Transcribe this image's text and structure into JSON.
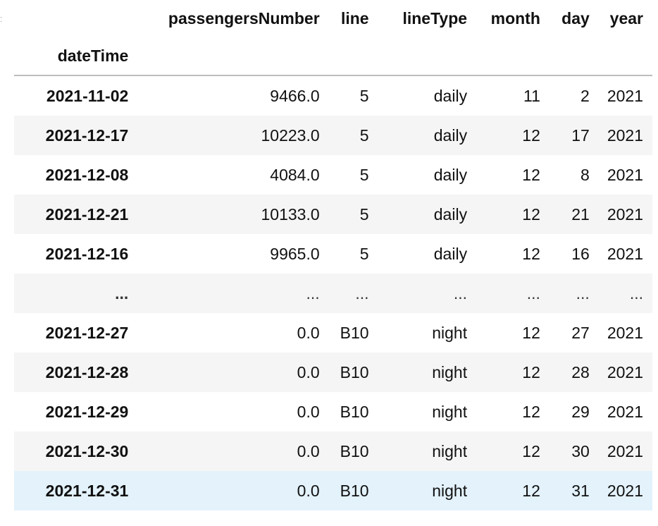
{
  "table": {
    "columns": [
      "passengersNumber",
      "line",
      "lineType",
      "month",
      "day",
      "year"
    ],
    "index_name": "dateTime",
    "rows": [
      {
        "index": "2021-11-02",
        "cells": [
          "9466.0",
          "5",
          "daily",
          "11",
          "2",
          "2021"
        ]
      },
      {
        "index": "2021-12-17",
        "cells": [
          "10223.0",
          "5",
          "daily",
          "12",
          "17",
          "2021"
        ]
      },
      {
        "index": "2021-12-08",
        "cells": [
          "4084.0",
          "5",
          "daily",
          "12",
          "8",
          "2021"
        ]
      },
      {
        "index": "2021-12-21",
        "cells": [
          "10133.0",
          "5",
          "daily",
          "12",
          "21",
          "2021"
        ]
      },
      {
        "index": "2021-12-16",
        "cells": [
          "9965.0",
          "5",
          "daily",
          "12",
          "16",
          "2021"
        ]
      },
      {
        "index": "...",
        "cells": [
          "...",
          "...",
          "...",
          "...",
          "...",
          "..."
        ]
      },
      {
        "index": "2021-12-27",
        "cells": [
          "0.0",
          "B10",
          "night",
          "12",
          "27",
          "2021"
        ]
      },
      {
        "index": "2021-12-28",
        "cells": [
          "0.0",
          "B10",
          "night",
          "12",
          "28",
          "2021"
        ]
      },
      {
        "index": "2021-12-29",
        "cells": [
          "0.0",
          "B10",
          "night",
          "12",
          "29",
          "2021"
        ]
      },
      {
        "index": "2021-12-30",
        "cells": [
          "0.0",
          "B10",
          "night",
          "12",
          "30",
          "2021"
        ]
      },
      {
        "index": "2021-12-31",
        "cells": [
          "0.0",
          "B10",
          "night",
          "12",
          "31",
          "2021"
        ]
      }
    ],
    "hovered_row": 10
  },
  "colors": {
    "stripe": "#f5f5f5",
    "hover": "#e3f2fb",
    "header_rule": "#bdbdbd"
  }
}
